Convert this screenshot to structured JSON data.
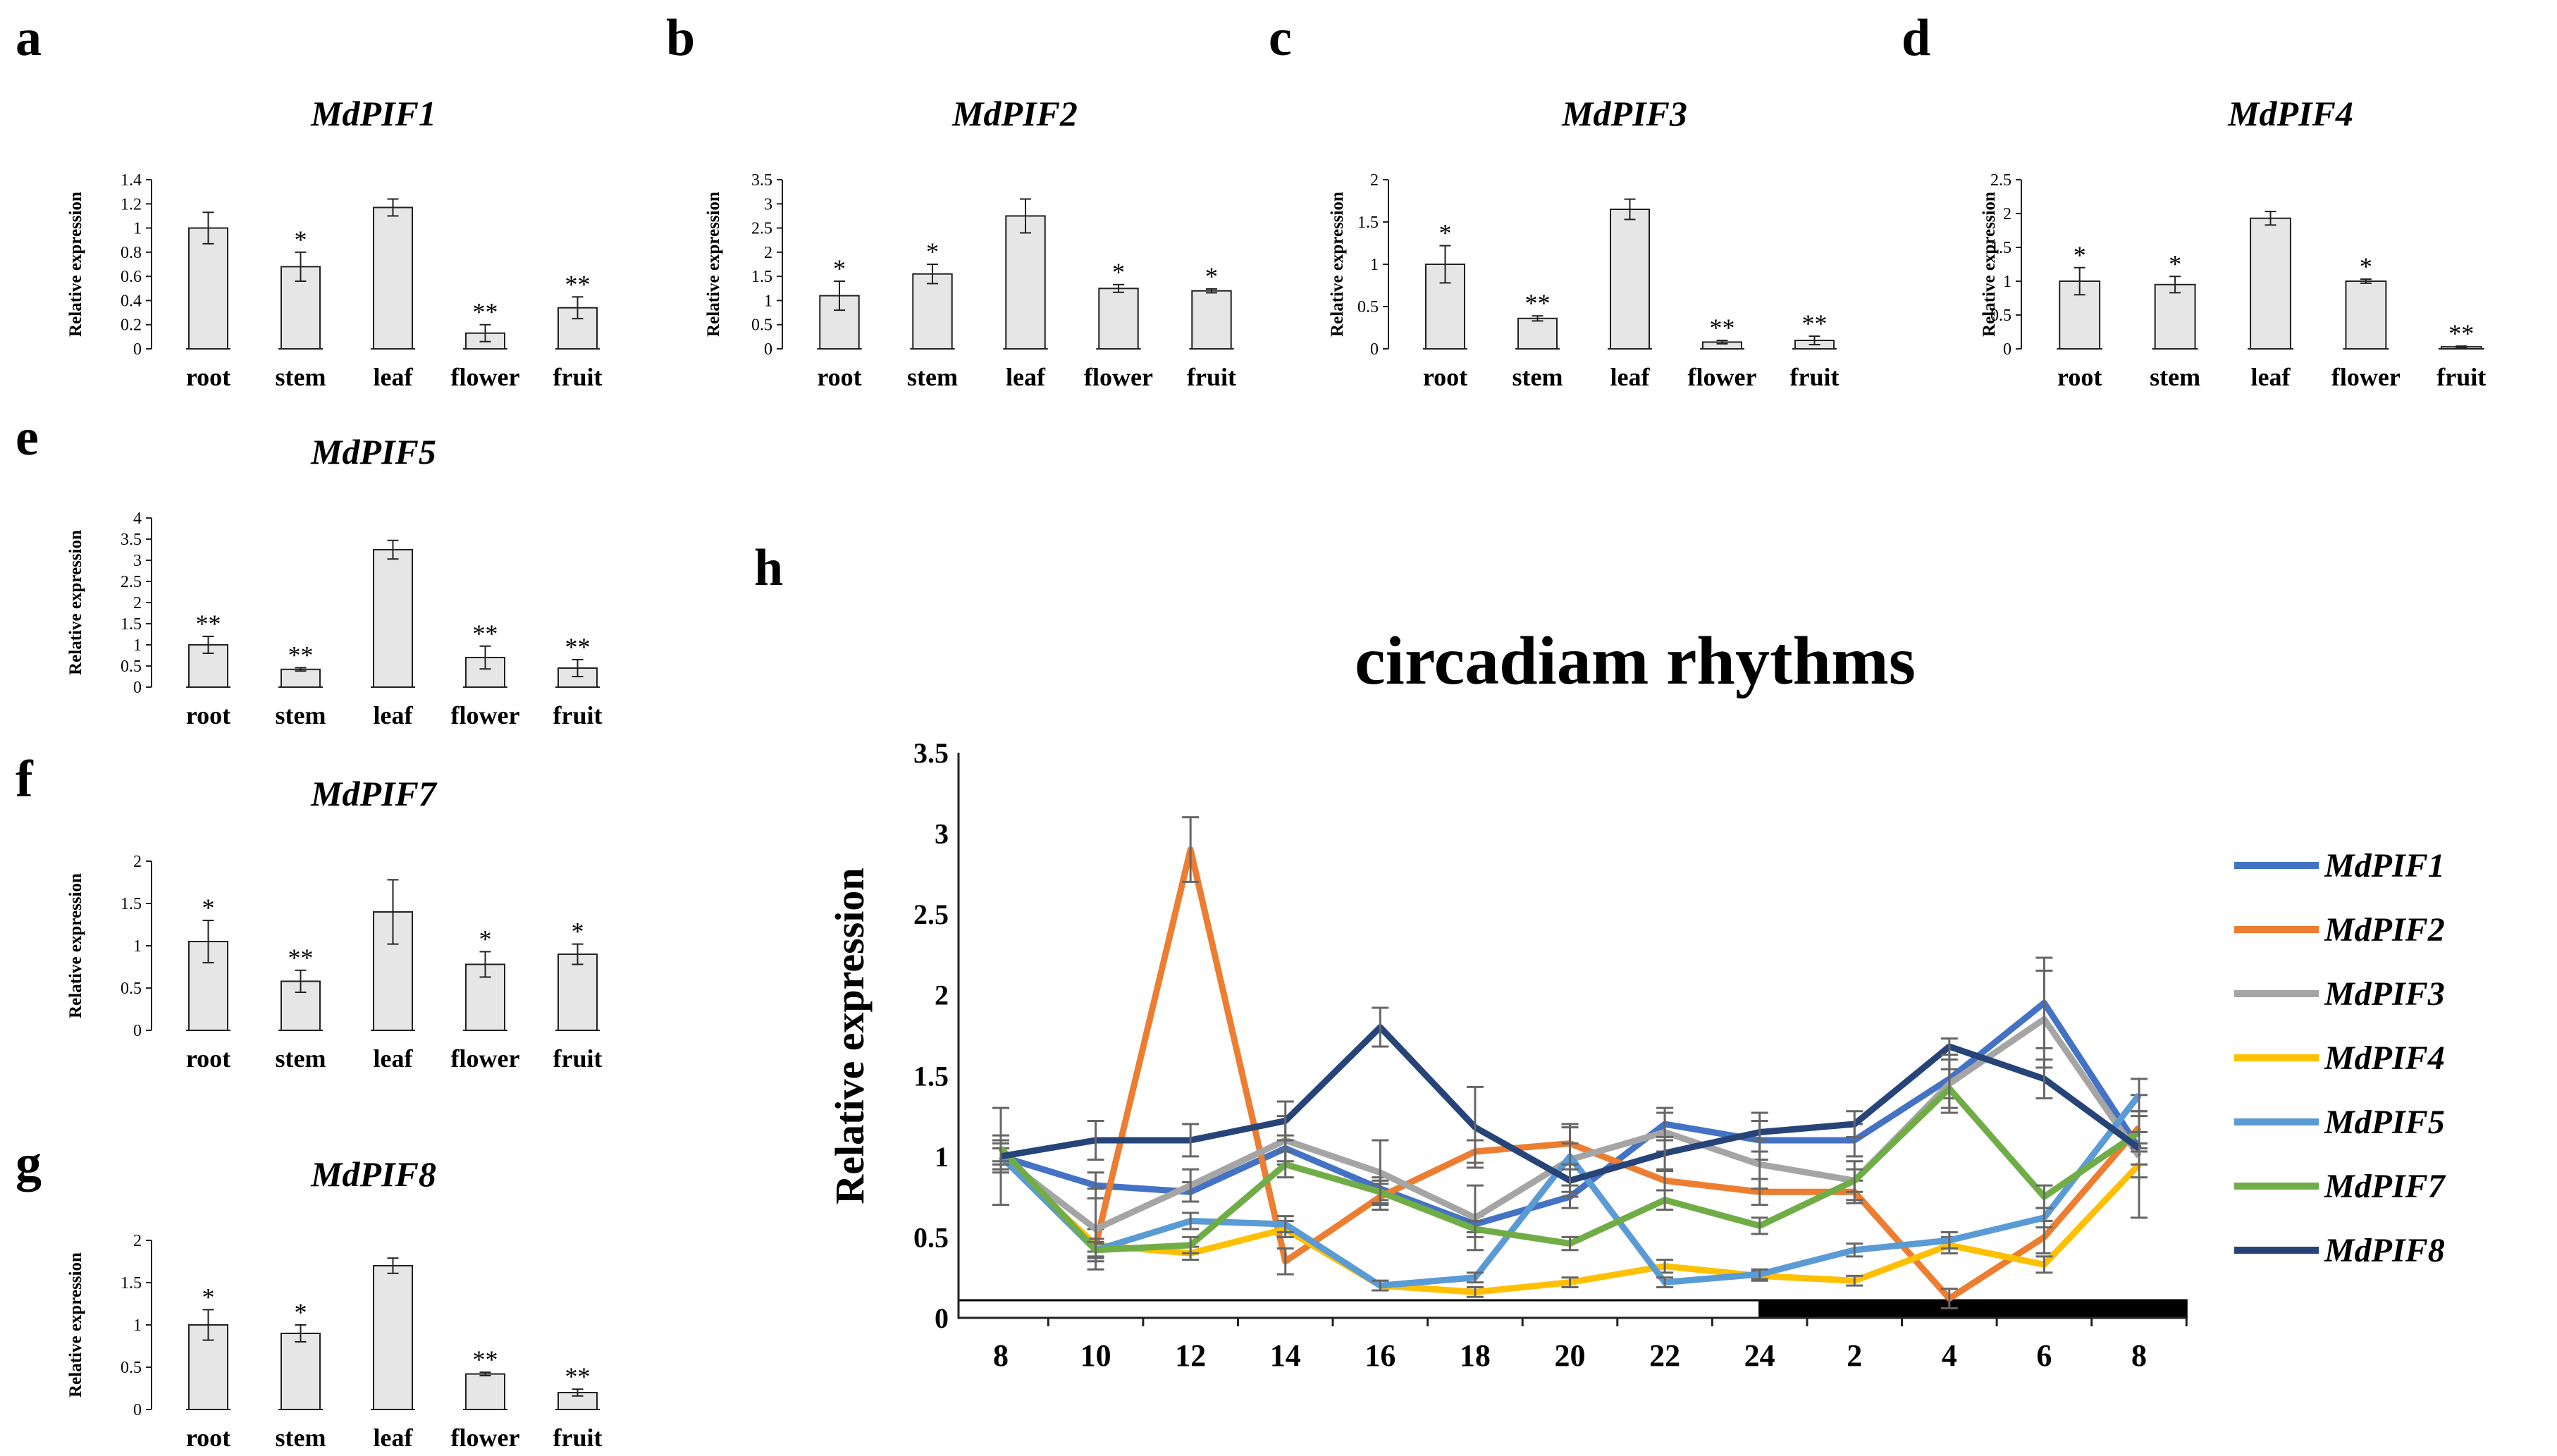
{
  "figure": {
    "tissue_panels": [
      {
        "letter": "a",
        "title": "MdPIF1"
      },
      {
        "letter": "b",
        "title": "MdPIF2"
      },
      {
        "letter": "c",
        "title": "MdPIF3"
      },
      {
        "letter": "d",
        "title": "MdPIF4"
      },
      {
        "letter": "e",
        "title": "MdPIF5"
      },
      {
        "letter": "f",
        "title": "MdPIF7"
      },
      {
        "letter": "g",
        "title": "MdPIF8"
      }
    ],
    "rhythm_panel": {
      "letter": "h"
    }
  },
  "chart_data": [
    {
      "type": "bar",
      "title": "MdPIF1",
      "ylabel": "Relative expression",
      "categories": [
        "root",
        "stem",
        "leaf",
        "flower",
        "fruit"
      ],
      "values": [
        1.0,
        0.68,
        1.17,
        0.13,
        0.34
      ],
      "errors": [
        0.13,
        0.12,
        0.07,
        0.07,
        0.09
      ],
      "significance": [
        "",
        "*",
        "",
        "**",
        "**"
      ],
      "ylim": [
        0,
        1.4
      ],
      "yticks": [
        "0",
        "0.2",
        "0.4",
        "0.6",
        "0.8",
        "1",
        "1.2",
        "1.4"
      ],
      "bar_color": "#e6e6e6"
    },
    {
      "type": "bar",
      "title": "MdPIF2",
      "ylabel": "Relative expression",
      "categories": [
        "root",
        "stem",
        "leaf",
        "flower",
        "fruit"
      ],
      "values": [
        1.1,
        1.55,
        2.75,
        1.25,
        1.2
      ],
      "errors": [
        0.3,
        0.2,
        0.35,
        0.08,
        0.04
      ],
      "significance": [
        "*",
        "*",
        "",
        "*",
        "*"
      ],
      "ylim": [
        0,
        3.5
      ],
      "yticks": [
        "0",
        "0.5",
        "1",
        "1.5",
        "2",
        "2.5",
        "3",
        "3.5"
      ],
      "bar_color": "#e6e6e6"
    },
    {
      "type": "bar",
      "title": "MdPIF3",
      "ylabel": "Relative expression",
      "categories": [
        "root",
        "stem",
        "leaf",
        "flower",
        "fruit"
      ],
      "values": [
        1.0,
        0.36,
        1.65,
        0.08,
        0.1
      ],
      "errors": [
        0.22,
        0.03,
        0.12,
        0.02,
        0.05
      ],
      "significance": [
        "*",
        "**",
        "",
        "**",
        "**"
      ],
      "ylim": [
        0,
        2
      ],
      "yticks": [
        "0",
        "0.5",
        "1",
        "1.5",
        "2"
      ],
      "bar_color": "#e6e6e6"
    },
    {
      "type": "bar",
      "title": "MdPIF4",
      "ylabel": "Relative expression",
      "categories": [
        "root",
        "stem",
        "leaf",
        "flower",
        "fruit"
      ],
      "values": [
        1.0,
        0.95,
        1.93,
        1.0,
        0.03
      ],
      "errors": [
        0.2,
        0.12,
        0.1,
        0.03,
        0.01
      ],
      "significance": [
        "*",
        "*",
        "",
        "*",
        "**"
      ],
      "ylim": [
        0,
        2.5
      ],
      "yticks": [
        "0",
        "0.5",
        "1",
        "1.5",
        "2",
        "2.5"
      ],
      "bar_color": "#e6e6e6"
    },
    {
      "type": "bar",
      "title": "MdPIF5",
      "ylabel": "Relative expression",
      "categories": [
        "root",
        "stem",
        "leaf",
        "flower",
        "fruit"
      ],
      "values": [
        1.0,
        0.42,
        3.25,
        0.7,
        0.45
      ],
      "errors": [
        0.2,
        0.04,
        0.22,
        0.27,
        0.2
      ],
      "significance": [
        "**",
        "**",
        "",
        "**",
        "**"
      ],
      "ylim": [
        0,
        4
      ],
      "yticks": [
        "0",
        "0.5",
        "1",
        "1.5",
        "2",
        "2.5",
        "3",
        "3.5",
        "4"
      ],
      "bar_color": "#e6e6e6"
    },
    {
      "type": "bar",
      "title": "MdPIF7",
      "ylabel": "Relative expression",
      "categories": [
        "root",
        "stem",
        "leaf",
        "flower",
        "fruit"
      ],
      "values": [
        1.05,
        0.58,
        1.4,
        0.78,
        0.9
      ],
      "errors": [
        0.25,
        0.13,
        0.38,
        0.15,
        0.12
      ],
      "significance": [
        "*",
        "**",
        "",
        "*",
        "*"
      ],
      "ylim": [
        0,
        2
      ],
      "yticks": [
        "0",
        "0.5",
        "1",
        "1.5",
        "2"
      ],
      "bar_color": "#e6e6e6"
    },
    {
      "type": "bar",
      "title": "MdPIF8",
      "ylabel": "Relative expression",
      "categories": [
        "root",
        "stem",
        "leaf",
        "flower",
        "fruit"
      ],
      "values": [
        1.0,
        0.9,
        1.7,
        0.42,
        0.2
      ],
      "errors": [
        0.18,
        0.1,
        0.09,
        0.02,
        0.04
      ],
      "significance": [
        "*",
        "*",
        "",
        "**",
        "**"
      ],
      "ylim": [
        0,
        2
      ],
      "yticks": [
        "0",
        "0.5",
        "1",
        "1.5",
        "2"
      ],
      "bar_color": "#e6e6e6"
    },
    {
      "type": "line",
      "title": "circadiam rhythms",
      "ylabel": "Relative expression",
      "x": [
        "8",
        "10",
        "12",
        "14",
        "16",
        "18",
        "20",
        "22",
        "24",
        "2",
        "4",
        "6",
        "8"
      ],
      "ylim": [
        0,
        3.5
      ],
      "yticks": [
        "0",
        "0.5",
        "1",
        "1.5",
        "2",
        "2.5",
        "3",
        "3.5"
      ],
      "grid": false,
      "legend_position": "right",
      "light_dark_bar": {
        "light": [
          "8",
          "24"
        ],
        "dark": [
          "24",
          "8"
        ]
      },
      "series": [
        {
          "name": "MdPIF1",
          "color": "#4472c4",
          "values": [
            1.0,
            0.82,
            0.78,
            1.05,
            0.8,
            0.58,
            0.75,
            1.2,
            1.1,
            1.1,
            1.48,
            1.95,
            1.05
          ],
          "errors": [
            0.1,
            0.08,
            0.06,
            0.08,
            0.07,
            0.05,
            0.07,
            0.1,
            0.12,
            0.1,
            0.12,
            0.28,
            0.1
          ]
        },
        {
          "name": "MdPIF2",
          "color": "#ed7d31",
          "values": [
            1.0,
            0.45,
            2.9,
            0.35,
            0.75,
            1.03,
            1.08,
            0.85,
            0.78,
            0.78,
            0.12,
            0.5,
            1.18
          ],
          "errors": [
            0.08,
            0.1,
            0.2,
            0.08,
            0.08,
            0.07,
            0.12,
            0.06,
            0.08,
            0.07,
            0.06,
            0.1,
            0.1
          ]
        },
        {
          "name": "MdPIF3",
          "color": "#a5a5a5",
          "values": [
            1.0,
            0.55,
            0.82,
            1.1,
            0.9,
            0.62,
            0.98,
            1.15,
            0.95,
            0.85,
            1.45,
            1.85,
            1.0
          ],
          "errors": [
            0.3,
            0.25,
            0.1,
            0.15,
            0.2,
            0.2,
            0.2,
            0.12,
            0.15,
            0.12,
            0.18,
            0.3,
            0.38
          ]
        },
        {
          "name": "MdPIF4",
          "color": "#ffc000",
          "values": [
            1.0,
            0.45,
            0.4,
            0.55,
            0.2,
            0.16,
            0.22,
            0.32,
            0.26,
            0.23,
            0.45,
            0.33,
            0.95
          ],
          "errors": [
            0.05,
            0.04,
            0.04,
            0.05,
            0.03,
            0.03,
            0.03,
            0.04,
            0.03,
            0.03,
            0.05,
            0.05,
            0.08
          ]
        },
        {
          "name": "MdPIF5",
          "color": "#5b9bd5",
          "values": [
            1.0,
            0.42,
            0.6,
            0.58,
            0.2,
            0.25,
            1.0,
            0.22,
            0.27,
            0.42,
            0.48,
            0.62,
            1.38
          ],
          "errors": [
            0.05,
            0.04,
            0.05,
            0.05,
            0.03,
            0.03,
            0.08,
            0.03,
            0.03,
            0.04,
            0.05,
            0.06,
            0.1
          ]
        },
        {
          "name": "MdPIF7",
          "color": "#70ad47",
          "values": [
            1.05,
            0.42,
            0.45,
            0.95,
            0.78,
            0.55,
            0.46,
            0.73,
            0.57,
            0.85,
            1.42,
            0.75,
            1.15
          ],
          "errors": [
            0.08,
            0.05,
            0.05,
            0.08,
            0.07,
            0.05,
            0.04,
            0.06,
            0.05,
            0.07,
            0.12,
            0.07,
            0.1
          ]
        },
        {
          "name": "MdPIF8",
          "color": "#264478",
          "values": [
            1.0,
            1.1,
            1.1,
            1.22,
            1.8,
            1.18,
            0.85,
            1.02,
            1.15,
            1.2,
            1.68,
            1.48,
            1.05
          ],
          "errors": [
            0.08,
            0.12,
            0.1,
            0.12,
            0.12,
            0.25,
            0.1,
            0.1,
            0.12,
            0.08,
            0.05,
            0.12,
            0.1
          ]
        }
      ]
    }
  ]
}
